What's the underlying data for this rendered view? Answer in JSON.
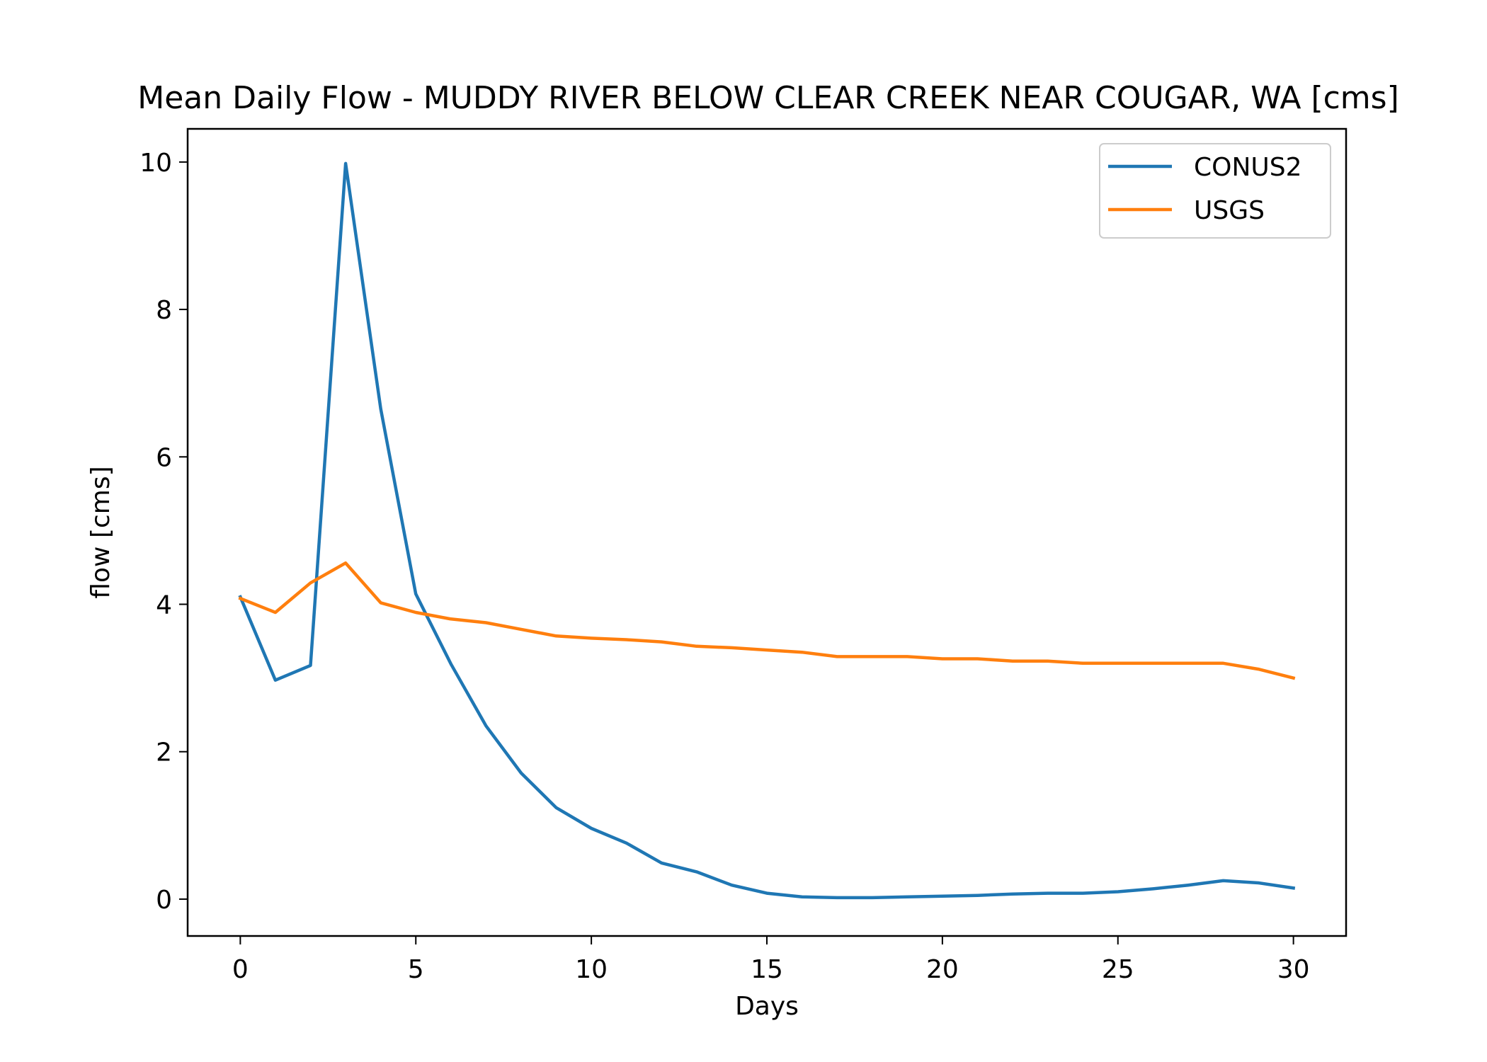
{
  "chart_data": {
    "type": "line",
    "title": "Mean Daily Flow - MUDDY RIVER BELOW CLEAR CREEK NEAR COUGAR, WA [cms]",
    "xlabel": "Days",
    "ylabel": "flow [cms]",
    "xlim": [
      -1.5,
      31.5
    ],
    "ylim": [
      -0.5,
      10.45
    ],
    "xticks": [
      0,
      5,
      10,
      15,
      20,
      25,
      30
    ],
    "yticks": [
      0,
      2,
      4,
      6,
      8,
      10
    ],
    "grid": false,
    "legend_position": "top-right",
    "x": [
      0,
      1,
      2,
      3,
      4,
      5,
      6,
      7,
      8,
      9,
      10,
      11,
      12,
      13,
      14,
      15,
      16,
      17,
      18,
      19,
      20,
      21,
      22,
      23,
      24,
      25,
      26,
      27,
      28,
      29,
      30
    ],
    "series": [
      {
        "name": "CONUS2",
        "color": "#1f77b4",
        "values": [
          4.1,
          2.97,
          3.17,
          9.98,
          6.65,
          4.14,
          3.19,
          2.35,
          1.71,
          1.24,
          0.96,
          0.76,
          0.49,
          0.37,
          0.19,
          0.08,
          0.03,
          0.02,
          0.02,
          0.03,
          0.04,
          0.05,
          0.07,
          0.08,
          0.08,
          0.1,
          0.14,
          0.19,
          0.25,
          0.22,
          0.15
        ]
      },
      {
        "name": "USGS",
        "color": "#ff7f0e",
        "values": [
          4.08,
          3.89,
          4.29,
          4.56,
          4.02,
          3.89,
          3.8,
          3.75,
          3.66,
          3.57,
          3.54,
          3.52,
          3.49,
          3.43,
          3.41,
          3.38,
          3.35,
          3.29,
          3.29,
          3.29,
          3.26,
          3.26,
          3.23,
          3.23,
          3.2,
          3.2,
          3.2,
          3.2,
          3.2,
          3.12,
          3.0
        ]
      }
    ]
  }
}
